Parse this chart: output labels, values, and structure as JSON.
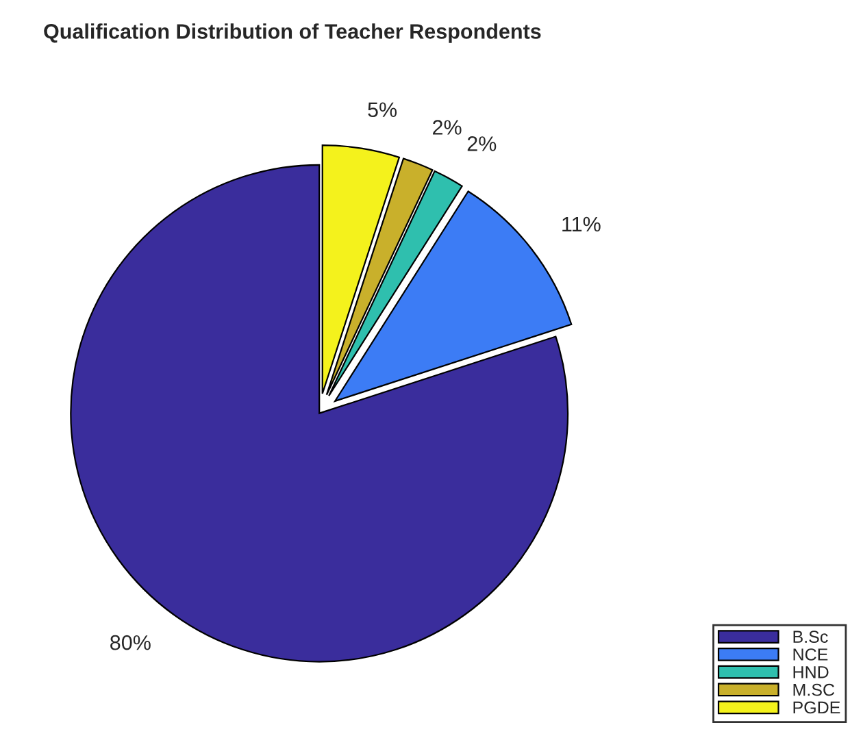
{
  "chart_data": {
    "type": "pie",
    "title": "Qualification Distribution of Teacher Respondents",
    "categories": [
      "B.Sc",
      "NCE",
      "HND",
      "M.SC",
      "PGDE"
    ],
    "values": [
      80,
      11,
      2,
      2,
      5
    ],
    "colors": [
      "#3a2d9c",
      "#3c7cf5",
      "#2fbfae",
      "#c9b02b",
      "#f4f21c"
    ],
    "value_labels": [
      "80%",
      "11%",
      "2%",
      "2%",
      "5%"
    ],
    "legend": "bottom right"
  }
}
